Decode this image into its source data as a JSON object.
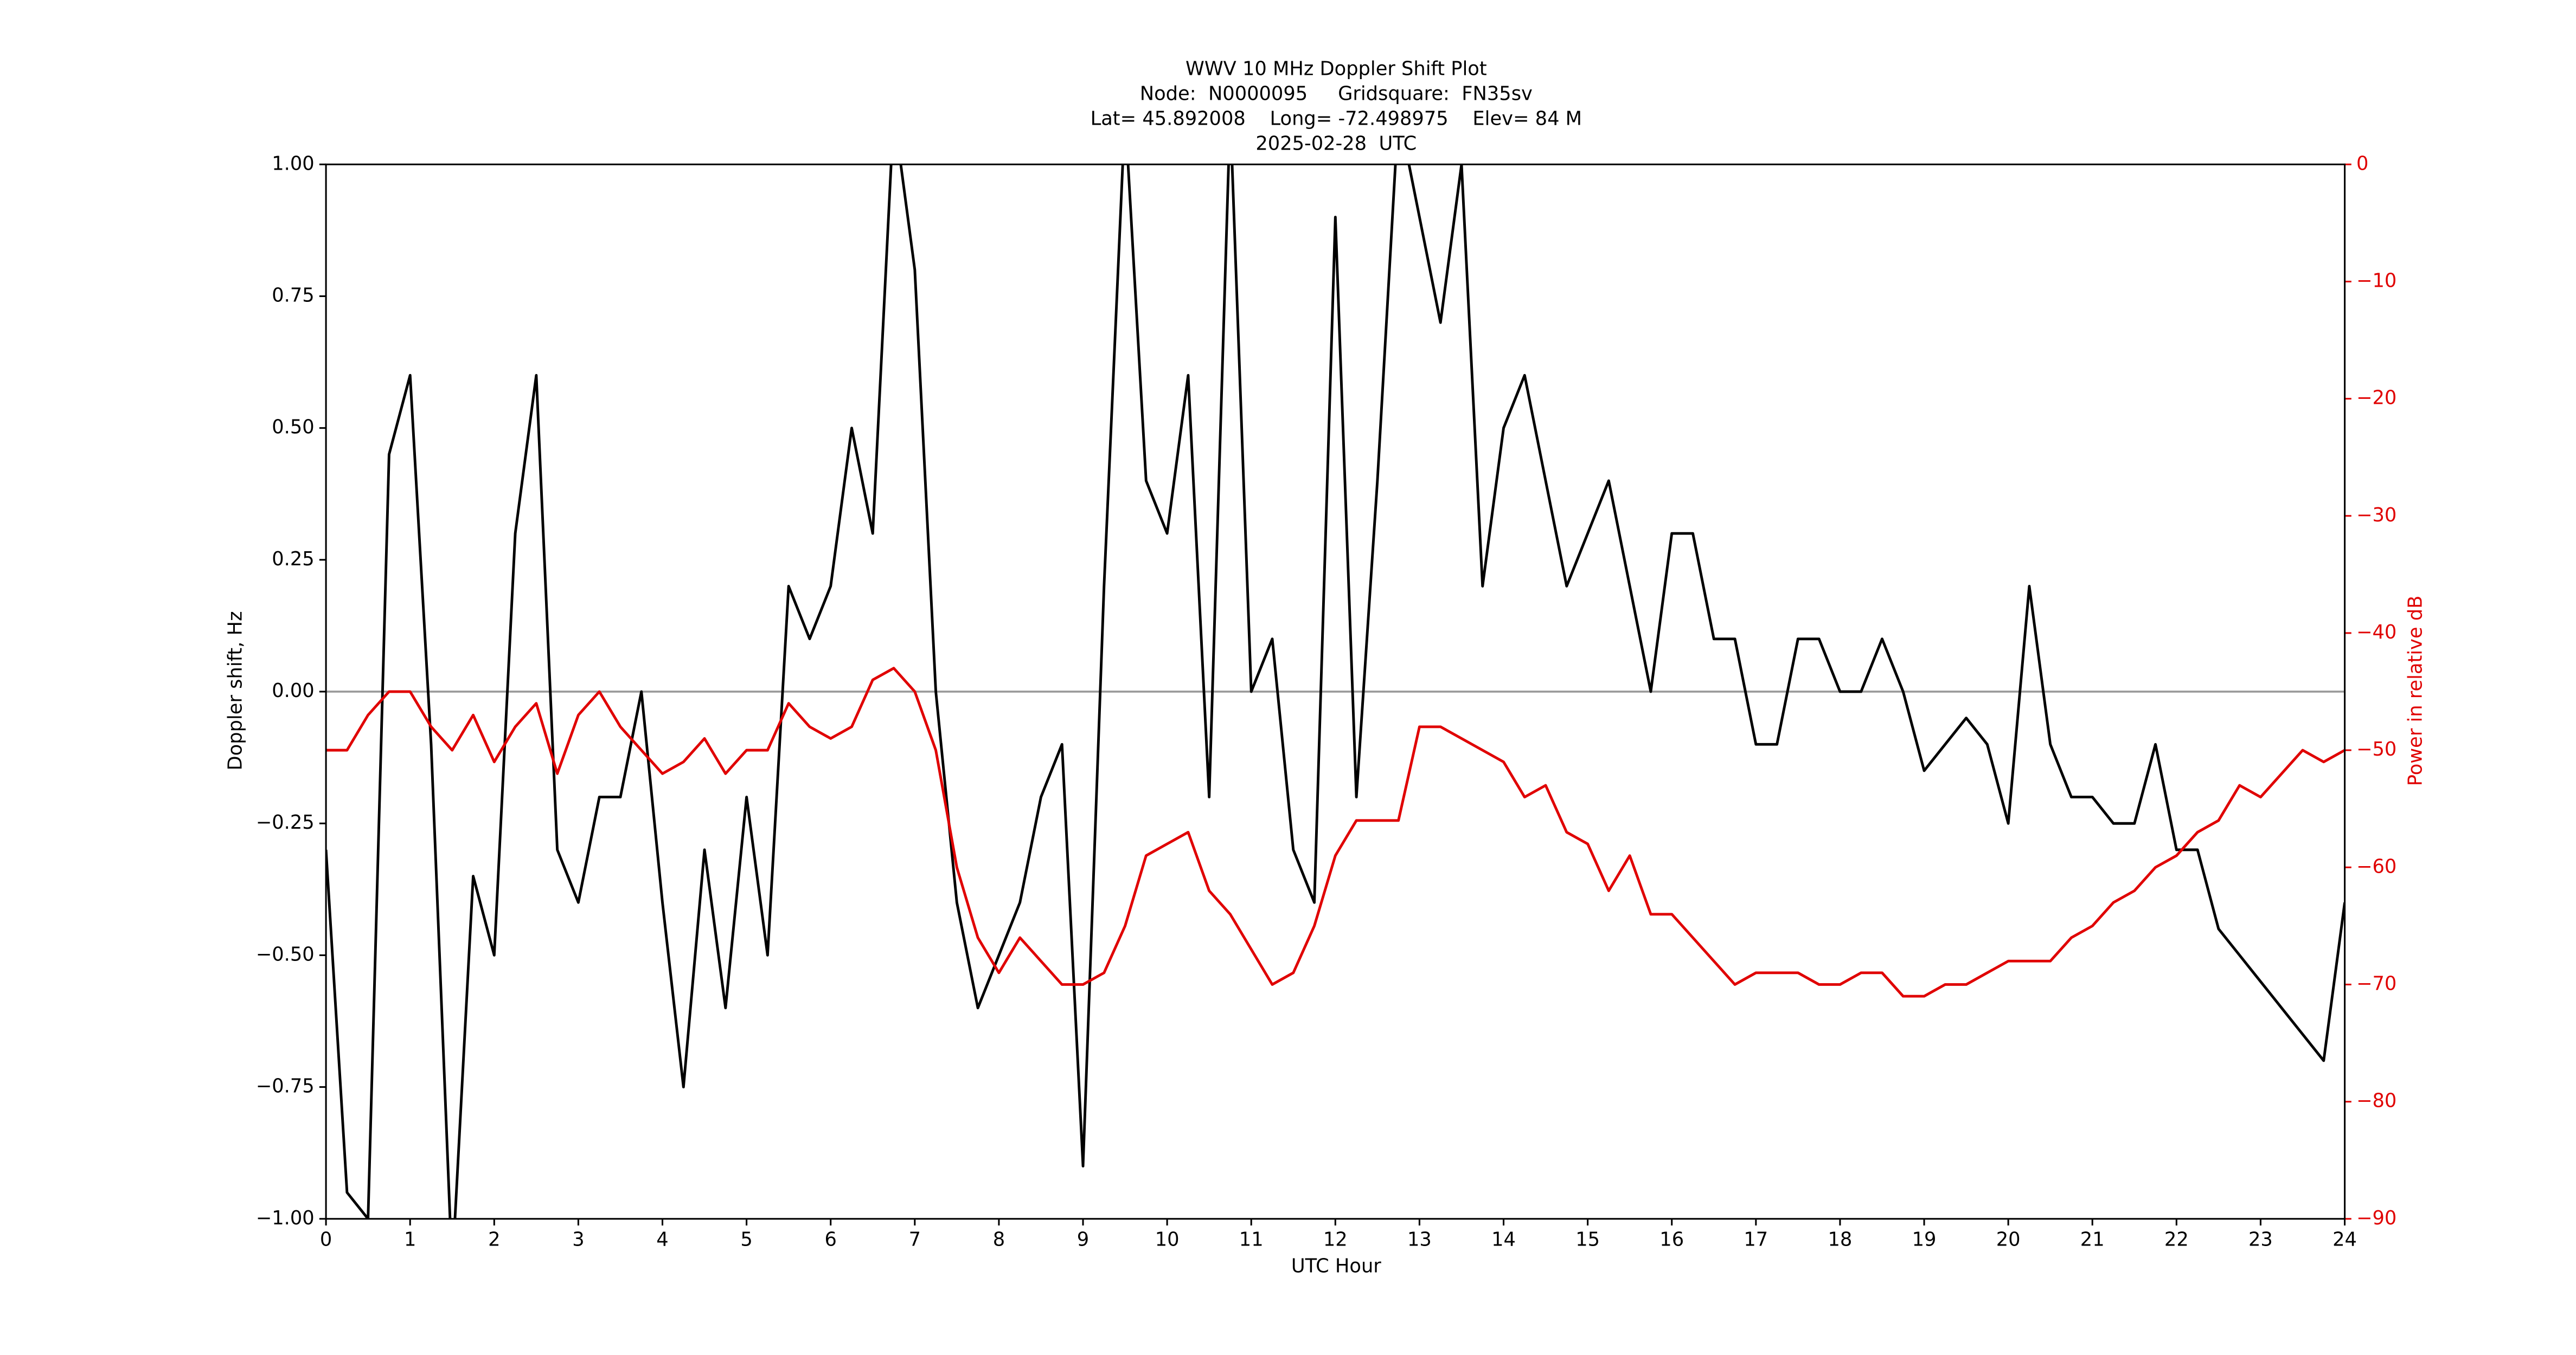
{
  "chart_data": {
    "type": "line",
    "title": [
      "WWV 10 MHz Doppler Shift Plot",
      "Node:  N0000095     Gridsquare:  FN35sv",
      "Lat= 45.892008    Long= -72.498975    Elev= 84 M",
      "2025-02-28  UTC"
    ],
    "xlabel": "UTC Hour",
    "ylabel": "Doppler shift, Hz",
    "y2label": "Power in relative dB",
    "y2color": "#e00000",
    "xlim": [
      0,
      24
    ],
    "xticks": [
      0,
      1,
      2,
      3,
      4,
      5,
      6,
      7,
      8,
      9,
      10,
      11,
      12,
      13,
      14,
      15,
      16,
      17,
      18,
      19,
      20,
      21,
      22,
      23,
      24
    ],
    "ylim": [
      -1,
      1
    ],
    "yticks": [
      {
        "value": -1,
        "label": "−1.00"
      },
      {
        "value": -0.75,
        "label": "−0.75"
      },
      {
        "value": -0.5,
        "label": "−0.50"
      },
      {
        "value": -0.25,
        "label": "−0.25"
      },
      {
        "value": 0,
        "label": "0.00"
      },
      {
        "value": 0.25,
        "label": "0.25"
      },
      {
        "value": 0.5,
        "label": "0.50"
      },
      {
        "value": 0.75,
        "label": "0.75"
      },
      {
        "value": 1,
        "label": "1.00"
      }
    ],
    "y2lim": [
      -90,
      0
    ],
    "y2ticks": [
      {
        "value": -90,
        "label": "−90"
      },
      {
        "value": -80,
        "label": "−80"
      },
      {
        "value": -70,
        "label": "−70"
      },
      {
        "value": -60,
        "label": "−60"
      },
      {
        "value": -50,
        "label": "−50"
      },
      {
        "value": -40,
        "label": "−40"
      },
      {
        "value": -30,
        "label": "−30"
      },
      {
        "value": -20,
        "label": "−20"
      },
      {
        "value": -10,
        "label": "−10"
      },
      0
    ],
    "hline": 0,
    "hline_color": "#999999",
    "x": [
      0,
      0.25,
      0.5,
      0.75,
      1,
      1.25,
      1.5,
      1.75,
      2,
      2.25,
      2.5,
      2.75,
      3,
      3.25,
      3.5,
      3.75,
      4,
      4.25,
      4.5,
      4.75,
      5,
      5.25,
      5.5,
      5.75,
      6,
      6.25,
      6.5,
      6.75,
      7,
      7.25,
      7.5,
      7.75,
      8,
      8.25,
      8.5,
      8.75,
      9,
      9.25,
      9.5,
      9.75,
      10,
      10.25,
      10.5,
      10.75,
      11,
      11.25,
      11.5,
      11.75,
      12,
      12.25,
      12.5,
      12.75,
      13,
      13.25,
      13.5,
      13.75,
      14,
      14.25,
      14.5,
      14.75,
      15,
      15.25,
      15.5,
      15.75,
      16,
      16.25,
      16.5,
      16.75,
      17,
      17.25,
      17.5,
      17.75,
      18,
      18.25,
      18.5,
      18.75,
      19,
      19.25,
      19.5,
      19.75,
      20,
      20.25,
      20.5,
      20.75,
      21,
      21.25,
      21.5,
      21.75,
      22,
      22.25,
      22.5,
      22.75,
      23,
      23.25,
      23.5,
      23.75,
      24
    ],
    "series": [
      {
        "color": "#000000",
        "values": [
          -0.3,
          -0.95,
          -1.0,
          0.45,
          0.6,
          -0.1,
          -1.1,
          -0.35,
          -0.5,
          0.3,
          0.6,
          -0.3,
          -0.4,
          -0.2,
          -0.2,
          0.0,
          -0.4,
          -0.75,
          -0.3,
          -0.6,
          -0.2,
          -0.5,
          0.2,
          0.1,
          0.2,
          0.5,
          0.3,
          1.1,
          0.8,
          0.0,
          -0.4,
          -0.6,
          -0.5,
          -0.4,
          -0.2,
          -0.1,
          -0.9,
          0.2,
          1.1,
          0.4,
          0.3,
          0.6,
          -0.2,
          1.1,
          0.0,
          0.1,
          -0.3,
          -0.4,
          0.9,
          -0.2,
          0.4,
          1.1,
          0.9,
          0.7,
          1.0,
          0.2,
          0.5,
          0.6,
          0.4,
          0.2,
          0.3,
          0.4,
          0.2,
          0.0,
          0.3,
          0.3,
          0.1,
          0.1,
          -0.1,
          -0.1,
          0.1,
          0.1,
          0.0,
          0.0,
          0.1,
          0.0,
          -0.15,
          -0.1,
          -0.05,
          -0.1,
          -0.25,
          0.2,
          -0.1,
          -0.2,
          -0.2,
          -0.25,
          -0.25,
          -0.1,
          -0.3,
          -0.3,
          -0.45,
          -0.5,
          -0.55,
          -0.6,
          -0.65,
          -0.7,
          -0.4
        ]
      },
      {
        "color": "#e00000",
        "axis": "y2",
        "values": [
          -50,
          -50,
          -47,
          -45,
          -45,
          -48,
          -50,
          -47,
          -51,
          -48,
          -46,
          -52,
          -47,
          -45,
          -48,
          -50,
          -52,
          -51,
          -49,
          -52,
          -50,
          -50,
          -46,
          -48,
          -49,
          -48,
          -44,
          -43,
          -45,
          -50,
          -60,
          -66,
          -69,
          -66,
          -68,
          -70,
          -70,
          -69,
          -65,
          -59,
          -58,
          -57,
          -62,
          -64,
          -67,
          -70,
          -69,
          -65,
          -59,
          -56,
          -56,
          -56,
          -48,
          -48,
          -49,
          -50,
          -51,
          -54,
          -53,
          -57,
          -58,
          -62,
          -59,
          -64,
          -64,
          -66,
          -68,
          -70,
          -69,
          -69,
          -69,
          -70,
          -70,
          -69,
          -69,
          -71,
          -71,
          -70,
          -70,
          -69,
          -68,
          -68,
          -68,
          -66,
          -65,
          -63,
          -62,
          -60,
          -59,
          -57,
          -56,
          -53,
          -54,
          -52,
          -50,
          -51,
          -50
        ]
      }
    ]
  }
}
